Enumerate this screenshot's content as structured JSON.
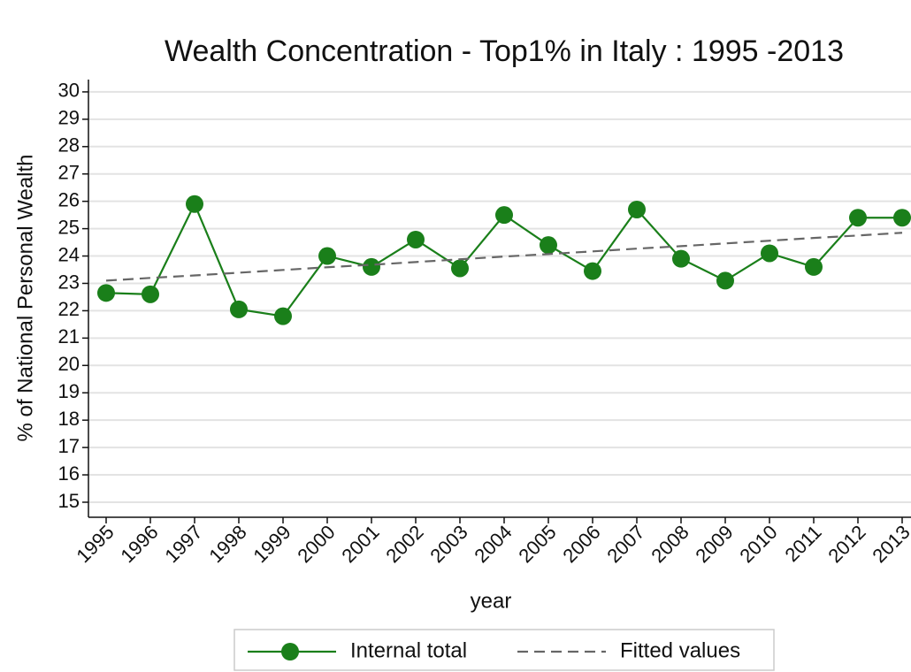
{
  "chart_data": {
    "type": "line",
    "title": "Wealth Concentration - Top1% in Italy : 1995 -2013",
    "x_label": "year",
    "y_label": "% of National Personal Wealth",
    "x": [
      1995,
      1996,
      1997,
      1998,
      1999,
      2000,
      2001,
      2002,
      2003,
      2004,
      2005,
      2006,
      2007,
      2008,
      2009,
      2010,
      2011,
      2012,
      2013
    ],
    "series": [
      {
        "name": "Internal total",
        "color": "#1a7f1a",
        "style": "solid-markers",
        "values": [
          22.65,
          22.6,
          25.9,
          22.05,
          21.8,
          24.0,
          23.6,
          24.6,
          23.55,
          25.5,
          24.4,
          23.45,
          25.7,
          23.9,
          23.1,
          24.1,
          23.6,
          25.4,
          25.4
        ]
      },
      {
        "name": "Fitted values",
        "color": "#666666",
        "style": "dashed",
        "values": [
          23.1,
          23.2,
          23.29,
          23.39,
          23.49,
          23.59,
          23.68,
          23.78,
          23.88,
          23.98,
          24.07,
          24.17,
          24.27,
          24.36,
          24.46,
          24.56,
          24.66,
          24.75,
          24.85
        ]
      }
    ],
    "xlim": [
      1994.6,
      2013.2
    ],
    "xticks": [
      1995,
      1996,
      1997,
      1998,
      1999,
      2000,
      2001,
      2002,
      2003,
      2004,
      2005,
      2006,
      2007,
      2008,
      2009,
      2010,
      2011,
      2012,
      2013
    ],
    "ylim": [
      14.45,
      30.45
    ],
    "yticks": [
      15,
      16,
      17,
      18,
      19,
      20,
      21,
      22,
      23,
      24,
      25,
      26,
      27,
      28,
      29,
      30
    ],
    "grid": true,
    "legend": "bottom"
  }
}
